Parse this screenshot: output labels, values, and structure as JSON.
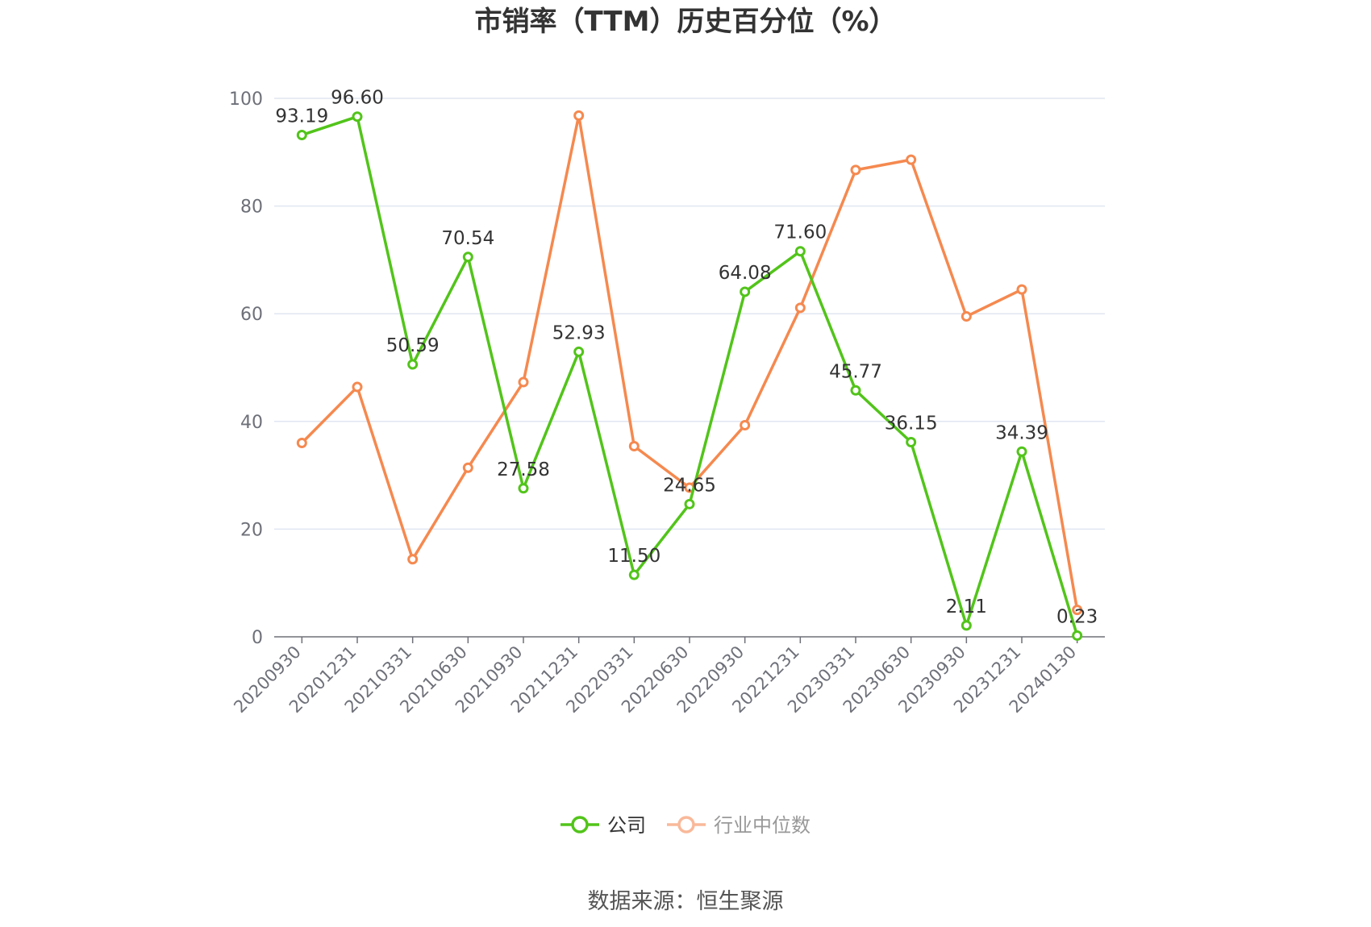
{
  "chart_data": {
    "type": "line",
    "title": "市销率（TTM）历史百分位（%）",
    "categories": [
      "20200930",
      "20201231",
      "20210331",
      "20210630",
      "20210930",
      "20211231",
      "20220331",
      "20220630",
      "20220930",
      "20221231",
      "20230331",
      "20230630",
      "20230930",
      "20231231",
      "20240130"
    ],
    "ylim": [
      0,
      100
    ],
    "yticks": [
      0,
      20,
      40,
      60,
      80,
      100
    ],
    "grid": true,
    "legend_position": "bottom-center",
    "series": [
      {
        "name": "公司",
        "color": "#52c41a",
        "values": [
          93.19,
          96.6,
          50.59,
          70.54,
          27.58,
          52.93,
          11.5,
          24.65,
          64.08,
          71.6,
          45.77,
          36.15,
          2.11,
          34.39,
          0.23
        ],
        "labels": [
          "93.19",
          "96.60",
          "50.59",
          "70.54",
          "27.58",
          "52.93",
          "11.50",
          "24.65",
          "64.08",
          "71.60",
          "45.77",
          "36.15",
          "2.11",
          "34.39",
          "0.23"
        ]
      },
      {
        "name": "行业中位数",
        "color": "#f5894f",
        "values": [
          36.0,
          46.4,
          14.4,
          31.4,
          47.3,
          96.8,
          35.4,
          27.7,
          39.3,
          61.1,
          86.7,
          88.6,
          59.5,
          64.5,
          5.0
        ]
      }
    ],
    "source": "数据来源：恒生聚源"
  }
}
